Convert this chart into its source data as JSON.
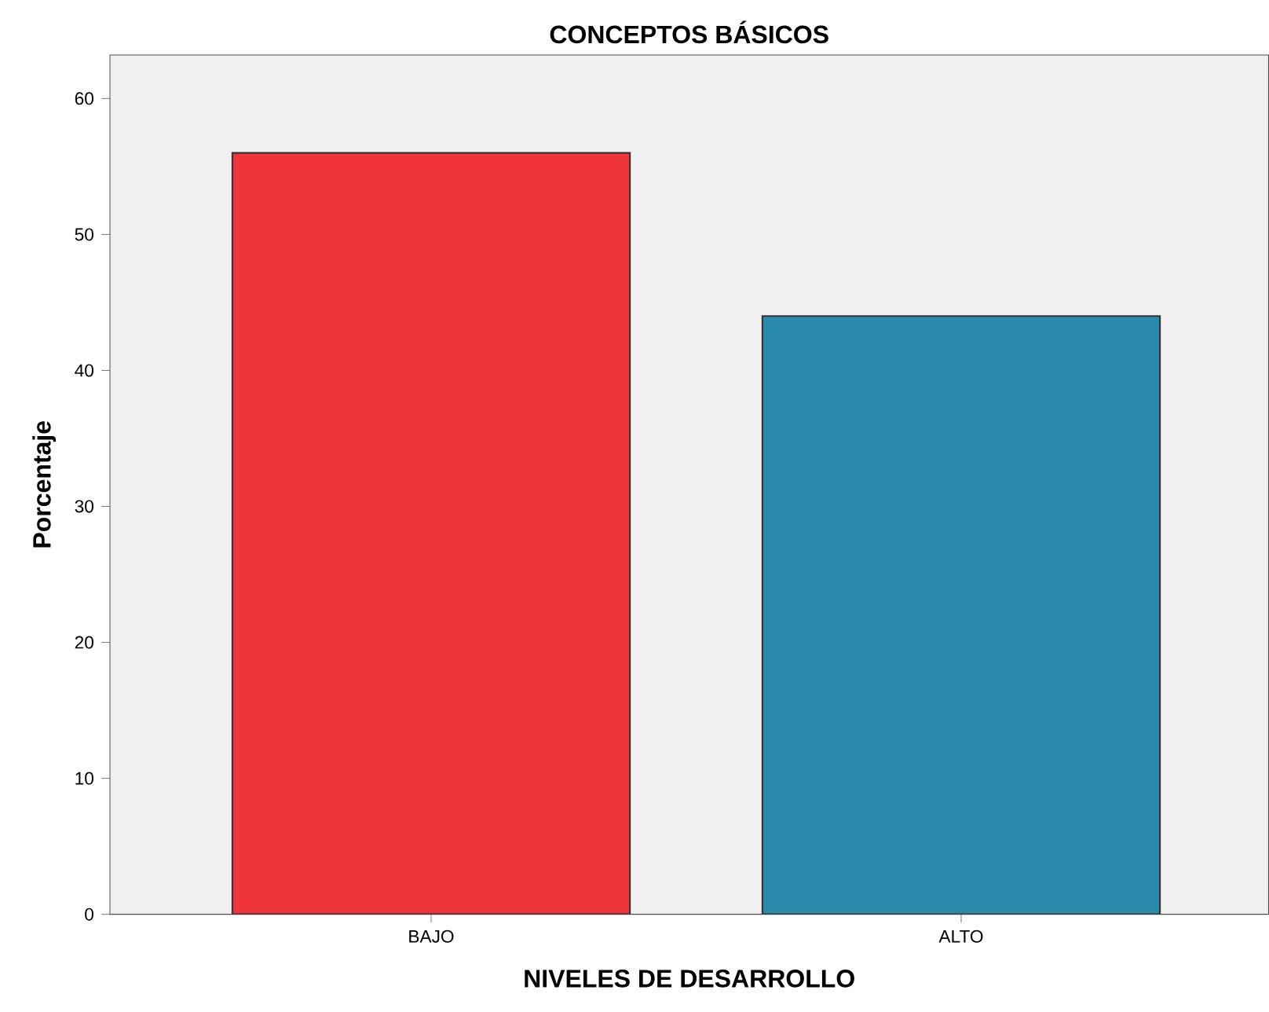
{
  "chart_data": {
    "type": "bar",
    "title": "CONCEPTOS BÁSICOS",
    "xlabel": "NIVELES DE DESARROLLO",
    "ylabel": "Porcentaje",
    "categories": [
      "BAJO",
      "ALTO"
    ],
    "values": [
      56,
      44
    ],
    "colors": [
      "#f0353a",
      "#2a8aab"
    ],
    "ylim": [
      0,
      63.2
    ],
    "yticks": [
      0,
      10,
      20,
      30,
      40,
      50,
      60
    ],
    "grid": false
  }
}
